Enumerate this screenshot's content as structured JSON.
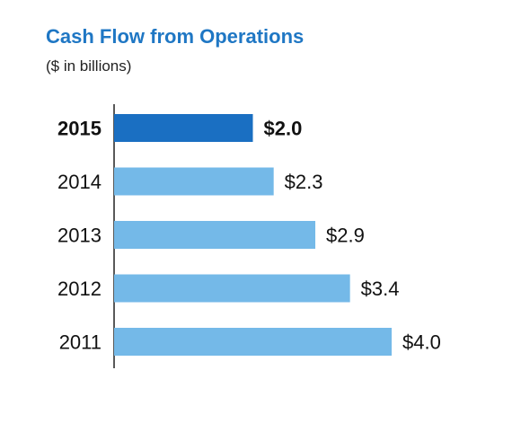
{
  "chart_data": {
    "type": "bar",
    "orientation": "horizontal",
    "title": "Cash Flow from Operations",
    "subtitle": "($ in billions)",
    "categories": [
      "2015",
      "2014",
      "2013",
      "2012",
      "2011"
    ],
    "values": [
      2.0,
      2.3,
      2.9,
      3.4,
      4.0
    ],
    "value_labels": [
      "$2.0",
      "$2.3",
      "$2.9",
      "$3.4",
      "$4.0"
    ],
    "highlight_category": "2015",
    "xlim": [
      0,
      4.0
    ],
    "colors": {
      "title": "#1f77c4",
      "highlight_bar": "#1a6fc2",
      "highlight_text": "#1f77c4",
      "bar": "#74b9e8",
      "text": "#111111",
      "axis": "#222222"
    }
  }
}
